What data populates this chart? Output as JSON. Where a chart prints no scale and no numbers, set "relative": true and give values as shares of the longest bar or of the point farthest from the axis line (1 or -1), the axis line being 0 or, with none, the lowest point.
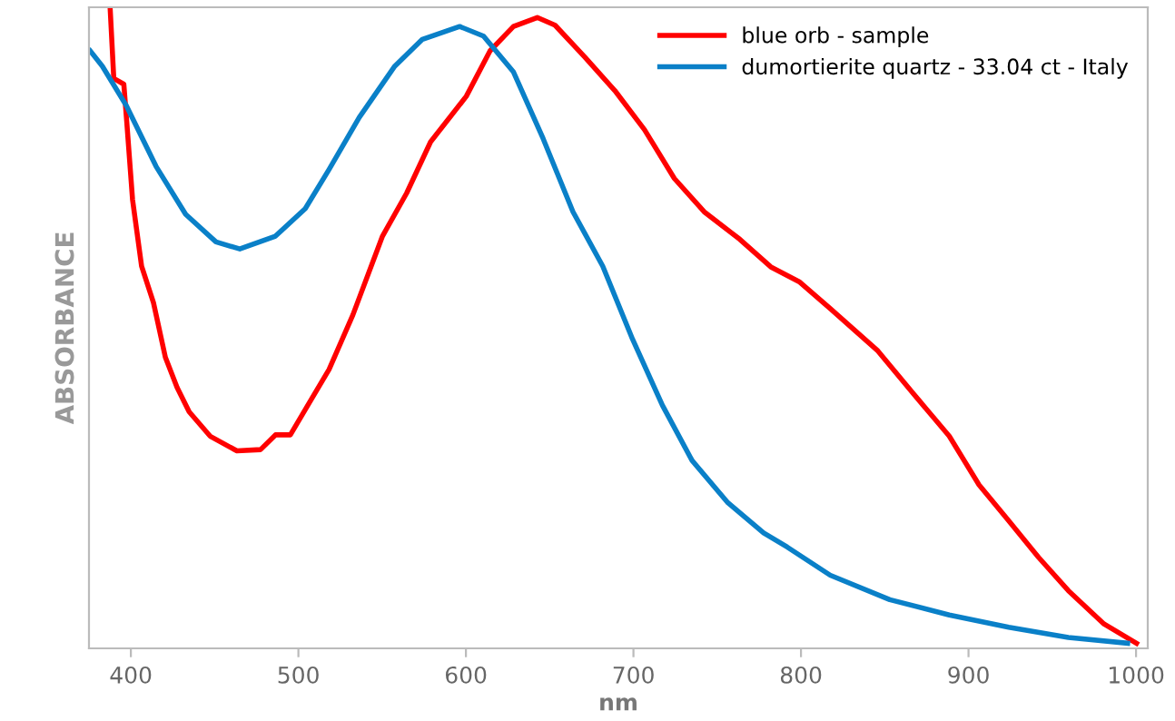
{
  "chart_data": {
    "type": "line",
    "xlabel": "nm",
    "ylabel": "ABSORBANCE",
    "relative": true,
    "xlim": [
      375,
      1007
    ],
    "xticks": [
      400,
      500,
      600,
      700,
      800,
      900,
      1000
    ],
    "grid": false,
    "legend": "top right",
    "marker": "none",
    "line_style": "solid",
    "series": [
      {
        "name": "blue orb - sample",
        "color": "#ff0000",
        "x": [
          387.6,
          389.8,
          395.8,
          397.5,
          401,
          406.4,
          413.5,
          420.6,
          427.6,
          434.8,
          447.3,
          463.3,
          477.4,
          486.3,
          495.2,
          507.6,
          518.3,
          532.5,
          550.2,
          564.6,
          578.9,
          600.2,
          614.4,
          628.4,
          642.6,
          653.2,
          671.1,
          688.9,
          706.6,
          724.4,
          742.2,
          763.5,
          782,
          798.9,
          817.5,
          845.9,
          867.2,
          888.5,
          906.3,
          924,
          941.8,
          959.6,
          980.9,
          1000.3
        ],
        "values": [
          1,
          0.889,
          0.88,
          0.823,
          0.7,
          0.596,
          0.539,
          0.454,
          0.407,
          0.369,
          0.331,
          0.308,
          0.31,
          0.333,
          0.333,
          0.388,
          0.435,
          0.52,
          0.643,
          0.71,
          0.79,
          0.861,
          0.932,
          0.97,
          0.984,
          0.972,
          0.922,
          0.87,
          0.809,
          0.733,
          0.681,
          0.638,
          0.595,
          0.572,
          0.53,
          0.464,
          0.397,
          0.331,
          0.255,
          0.199,
          0.142,
          0.09,
          0.038,
          0.008
        ]
      },
      {
        "name": "dumortierite quartz - 33.04 ct - Italy",
        "color": "#0a80c8",
        "x": [
          375.7,
          383,
          397.2,
          415,
          432.7,
          450.8,
          465,
          486.3,
          504.1,
          518.3,
          536.3,
          557.5,
          574,
          596.3,
          610.5,
          628.4,
          646.1,
          663.9,
          681.7,
          699.5,
          717.3,
          735,
          756.4,
          777.7,
          791.8,
          817.5,
          853,
          888.5,
          924,
          959.6,
          995
        ],
        "values": [
          0.932,
          0.908,
          0.847,
          0.752,
          0.677,
          0.634,
          0.623,
          0.643,
          0.686,
          0.747,
          0.828,
          0.908,
          0.95,
          0.97,
          0.955,
          0.899,
          0.795,
          0.681,
          0.596,
          0.482,
          0.379,
          0.293,
          0.227,
          0.18,
          0.158,
          0.114,
          0.076,
          0.052,
          0.033,
          0.017,
          0.008
        ]
      }
    ]
  }
}
